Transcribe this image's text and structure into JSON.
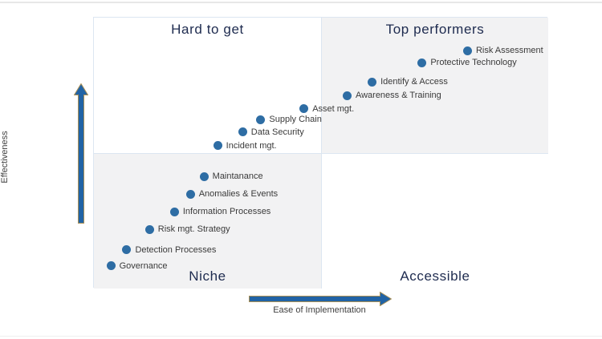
{
  "chart_data": {
    "type": "scatter",
    "variant": "quadrant-matrix",
    "title": "",
    "xlabel": "Ease of Implementation",
    "ylabel": "Effectiveness",
    "xlim": [
      0,
      100
    ],
    "ylim": [
      0,
      100
    ],
    "grid": false,
    "legend": false,
    "quadrant_labels": {
      "top_left": "Hard to get",
      "top_right": "Top performers",
      "bottom_left": "Niche",
      "bottom_right": "Accessible"
    },
    "points": [
      {
        "label": "Risk Assessment",
        "x": 82.5,
        "y": 87.5
      },
      {
        "label": "Protective Technology",
        "x": 72.5,
        "y": 83
      },
      {
        "label": "Identify & Access",
        "x": 61.5,
        "y": 76
      },
      {
        "label": "Awareness & Training",
        "x": 56,
        "y": 71
      },
      {
        "label": "Asset mgt.",
        "x": 46.5,
        "y": 66
      },
      {
        "label": "Supply Chain",
        "x": 37,
        "y": 62
      },
      {
        "label": "Data Security",
        "x": 33,
        "y": 57.5
      },
      {
        "label": "Incident mgt.",
        "x": 27.5,
        "y": 52.5
      },
      {
        "label": "Maintanance",
        "x": 24.5,
        "y": 41
      },
      {
        "label": "Anomalies & Events",
        "x": 21.5,
        "y": 34.5
      },
      {
        "label": "Information Processes",
        "x": 18,
        "y": 28
      },
      {
        "label": "Risk mgt. Strategy",
        "x": 12.5,
        "y": 21.5
      },
      {
        "label": "Detection Processes",
        "x": 7.5,
        "y": 14
      },
      {
        "label": "Governance",
        "x": 4,
        "y": 8
      }
    ],
    "colors": {
      "point": "#2e6da4",
      "arrow_fill": "#2163a5",
      "arrow_stroke": "#a98f55",
      "quadrant_title": "#1e2b4f",
      "point_label": "#3a3a3a",
      "axis_label": "#404040",
      "quadrant_shaded_bg": "#f2f2f3",
      "chart_border": "#dce6f1"
    }
  }
}
